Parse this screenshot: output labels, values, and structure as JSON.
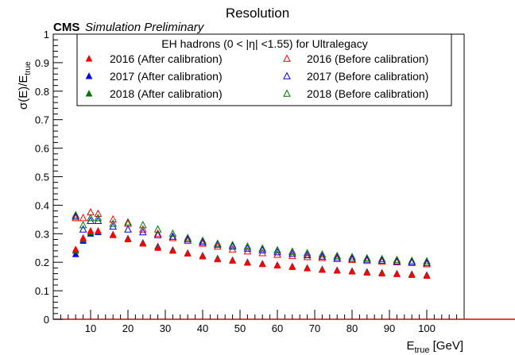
{
  "chart_data": {
    "type": "scatter",
    "title": "Resolution",
    "label_bold": "CMS",
    "label_italic": "Simulation Preliminary",
    "legend_title": "EH hadrons (0 < |η| <1.55) for Ultralegacy",
    "xlabel_main": "E",
    "xlabel_sub": "true",
    "xlabel_unit": " [GeV]",
    "ylabel_main": "σ(E)/E",
    "ylabel_sub": "true",
    "xlim": [
      0,
      110
    ],
    "ylim": [
      0,
      1
    ],
    "xticks": [
      10,
      20,
      30,
      40,
      50,
      60,
      70,
      80,
      90,
      100
    ],
    "yticks": [
      0,
      0.1,
      0.2,
      0.3,
      0.4,
      0.5,
      0.6,
      0.7,
      0.8,
      0.9,
      1
    ],
    "ytick_labels": [
      "0",
      "0.1",
      "0.2",
      "0.3",
      "0.4",
      "0.5",
      "0.6",
      "0.7",
      "0.8",
      "0.9",
      "1"
    ],
    "legend_position": "top",
    "grid": false,
    "x": [
      6,
      8,
      10,
      12,
      16,
      20,
      24,
      28,
      32,
      36,
      40,
      44,
      48,
      52,
      56,
      60,
      64,
      68,
      72,
      76,
      80,
      84,
      88,
      92,
      96,
      100
    ],
    "series": [
      {
        "name": "2016 (After calibration)",
        "color": "#ff0000",
        "marker": "filled-triangle",
        "values": [
          0.245,
          0.285,
          0.31,
          0.31,
          0.295,
          0.28,
          0.265,
          0.25,
          0.24,
          0.23,
          0.22,
          0.21,
          0.205,
          0.198,
          0.193,
          0.188,
          0.183,
          0.178,
          0.173,
          0.17,
          0.167,
          0.163,
          0.16,
          0.158,
          0.155,
          0.152
        ]
      },
      {
        "name": "2017 (After calibration)",
        "color": "#0000ff",
        "marker": "filled-triangle",
        "values": [
          0.228,
          0.275,
          0.3,
          0.305,
          0.295,
          0.283,
          0.268,
          0.255,
          0.243,
          0.232,
          0.223,
          0.213,
          0.207,
          0.2,
          0.195,
          0.19,
          0.185,
          0.18,
          0.175,
          0.172,
          0.169,
          0.166,
          0.163,
          0.16,
          0.158,
          0.155
        ]
      },
      {
        "name": "2018 (After calibration)",
        "color": "#007700",
        "marker": "filled-triangle",
        "values": [
          0.24,
          0.28,
          0.305,
          0.308,
          0.297,
          0.282,
          0.267,
          0.253,
          0.242,
          0.231,
          0.222,
          0.212,
          0.206,
          0.199,
          0.194,
          0.189,
          0.184,
          0.179,
          0.174,
          0.171,
          0.168,
          0.165,
          0.162,
          0.159,
          0.157,
          0.154
        ]
      },
      {
        "name": "2016 (Before calibration)",
        "color": "#ff0000",
        "marker": "open-triangle",
        "values": [
          0.355,
          0.355,
          0.375,
          0.37,
          0.35,
          0.335,
          0.315,
          0.3,
          0.285,
          0.275,
          0.265,
          0.255,
          0.245,
          0.238,
          0.232,
          0.226,
          0.222,
          0.218,
          0.215,
          0.211,
          0.208,
          0.205,
          0.202,
          0.2,
          0.198,
          0.193
        ]
      },
      {
        "name": "2017 (Before calibration)",
        "color": "#0000ff",
        "marker": "open-triangle",
        "values": [
          0.36,
          0.315,
          0.345,
          0.345,
          0.325,
          0.315,
          0.305,
          0.295,
          0.29,
          0.28,
          0.27,
          0.262,
          0.255,
          0.248,
          0.242,
          0.235,
          0.23,
          0.225,
          0.22,
          0.216,
          0.212,
          0.209,
          0.206,
          0.203,
          0.2,
          0.197
        ]
      },
      {
        "name": "2018 (Before calibration)",
        "color": "#007700",
        "marker": "open-triangle",
        "values": [
          0.365,
          0.33,
          0.355,
          0.355,
          0.335,
          0.34,
          0.33,
          0.315,
          0.3,
          0.285,
          0.275,
          0.265,
          0.26,
          0.255,
          0.248,
          0.242,
          0.237,
          0.232,
          0.227,
          0.222,
          0.218,
          0.214,
          0.211,
          0.208,
          0.205,
          0.203
        ]
      }
    ]
  }
}
